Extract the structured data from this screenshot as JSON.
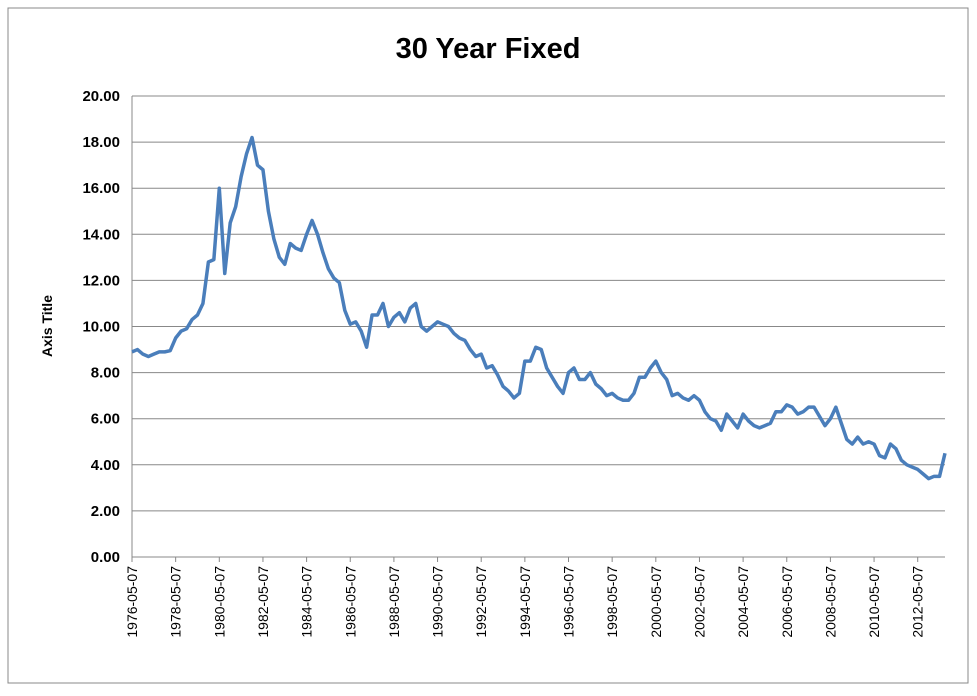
{
  "chart_data": {
    "type": "line",
    "title": "30 Year Fixed",
    "y_label": "Axis Title",
    "categories": [
      "1976-05-07",
      null,
      null,
      null,
      null,
      null,
      null,
      null,
      "1978-05-07",
      null,
      null,
      null,
      null,
      null,
      null,
      null,
      "1980-05-07",
      null,
      null,
      null,
      null,
      null,
      null,
      null,
      "1982-05-07",
      null,
      null,
      null,
      null,
      null,
      null,
      null,
      "1984-05-07",
      null,
      null,
      null,
      null,
      null,
      null,
      null,
      "1986-05-07",
      null,
      null,
      null,
      null,
      null,
      null,
      null,
      "1988-05-07",
      null,
      null,
      null,
      null,
      null,
      null,
      null,
      "1990-05-07",
      null,
      null,
      null,
      null,
      null,
      null,
      null,
      "1992-05-07",
      null,
      null,
      null,
      null,
      null,
      null,
      null,
      "1994-05-07",
      null,
      null,
      null,
      null,
      null,
      null,
      null,
      "1996-05-07",
      null,
      null,
      null,
      null,
      null,
      null,
      null,
      "1998-05-07",
      null,
      null,
      null,
      null,
      null,
      null,
      null,
      "2000-05-07",
      null,
      null,
      null,
      null,
      null,
      null,
      null,
      "2002-05-07",
      null,
      null,
      null,
      null,
      null,
      null,
      null,
      "2004-05-07",
      null,
      null,
      null,
      null,
      null,
      null,
      null,
      "2006-05-07",
      null,
      null,
      null,
      null,
      null,
      null,
      null,
      "2008-05-07",
      null,
      null,
      null,
      null,
      null,
      null,
      null,
      "2010-05-07",
      null,
      null,
      null,
      null,
      null,
      null,
      null,
      "2012-05-07",
      null,
      null,
      null,
      null,
      null
    ],
    "series": [
      {
        "name": "30 Year Fixed",
        "color": "#4a7ebb",
        "values": [
          8.9,
          9.0,
          8.8,
          8.7,
          8.8,
          8.9,
          8.9,
          8.95,
          9.5,
          9.8,
          9.9,
          10.3,
          10.5,
          11.0,
          12.8,
          12.9,
          16.0,
          12.3,
          14.5,
          15.2,
          16.5,
          17.5,
          18.2,
          17.0,
          16.8,
          15.0,
          13.8,
          13.0,
          12.7,
          13.6,
          13.4,
          13.3,
          14.0,
          14.6,
          14.0,
          13.2,
          12.5,
          12.1,
          11.9,
          10.7,
          10.1,
          10.2,
          9.8,
          9.1,
          10.5,
          10.5,
          11.0,
          10.0,
          10.4,
          10.6,
          10.2,
          10.8,
          11.0,
          10.0,
          9.8,
          10.0,
          10.2,
          10.1,
          10.0,
          9.7,
          9.5,
          9.4,
          9.0,
          8.7,
          8.8,
          8.2,
          8.3,
          7.9,
          7.4,
          7.2,
          6.9,
          7.1,
          8.5,
          8.5,
          9.1,
          9.0,
          8.2,
          7.8,
          7.4,
          7.1,
          8.0,
          8.2,
          7.7,
          7.7,
          8.0,
          7.5,
          7.3,
          7.0,
          7.1,
          6.9,
          6.8,
          6.8,
          7.1,
          7.8,
          7.8,
          8.2,
          8.5,
          8.0,
          7.7,
          7.0,
          7.1,
          6.9,
          6.8,
          7.0,
          6.8,
          6.3,
          6.0,
          5.9,
          5.5,
          6.2,
          5.9,
          5.6,
          6.2,
          5.9,
          5.7,
          5.6,
          5.7,
          5.8,
          6.3,
          6.3,
          6.6,
          6.5,
          6.2,
          6.3,
          6.5,
          6.5,
          6.1,
          5.7,
          6.0,
          6.5,
          5.8,
          5.1,
          4.9,
          5.2,
          4.9,
          5.0,
          4.9,
          4.4,
          4.3,
          4.9,
          4.7,
          4.2,
          4.0,
          3.9,
          3.8,
          3.6,
          3.4,
          3.5,
          3.5,
          4.5
        ]
      }
    ],
    "ylim": [
      0,
      20
    ],
    "yticks": [
      {
        "value": 0,
        "label": "0.00"
      },
      {
        "value": 2,
        "label": "2.00"
      },
      {
        "value": 4,
        "label": "4.00"
      },
      {
        "value": 6,
        "label": "6.00"
      },
      {
        "value": 8,
        "label": "8.00"
      },
      {
        "value": 10,
        "label": "10.00"
      },
      {
        "value": 12,
        "label": "12.00"
      },
      {
        "value": 14,
        "label": "14.00"
      },
      {
        "value": 16,
        "label": "16.00"
      },
      {
        "value": 18,
        "label": "18.00"
      },
      {
        "value": 20,
        "label": "20.00"
      }
    ],
    "grid": true
  }
}
